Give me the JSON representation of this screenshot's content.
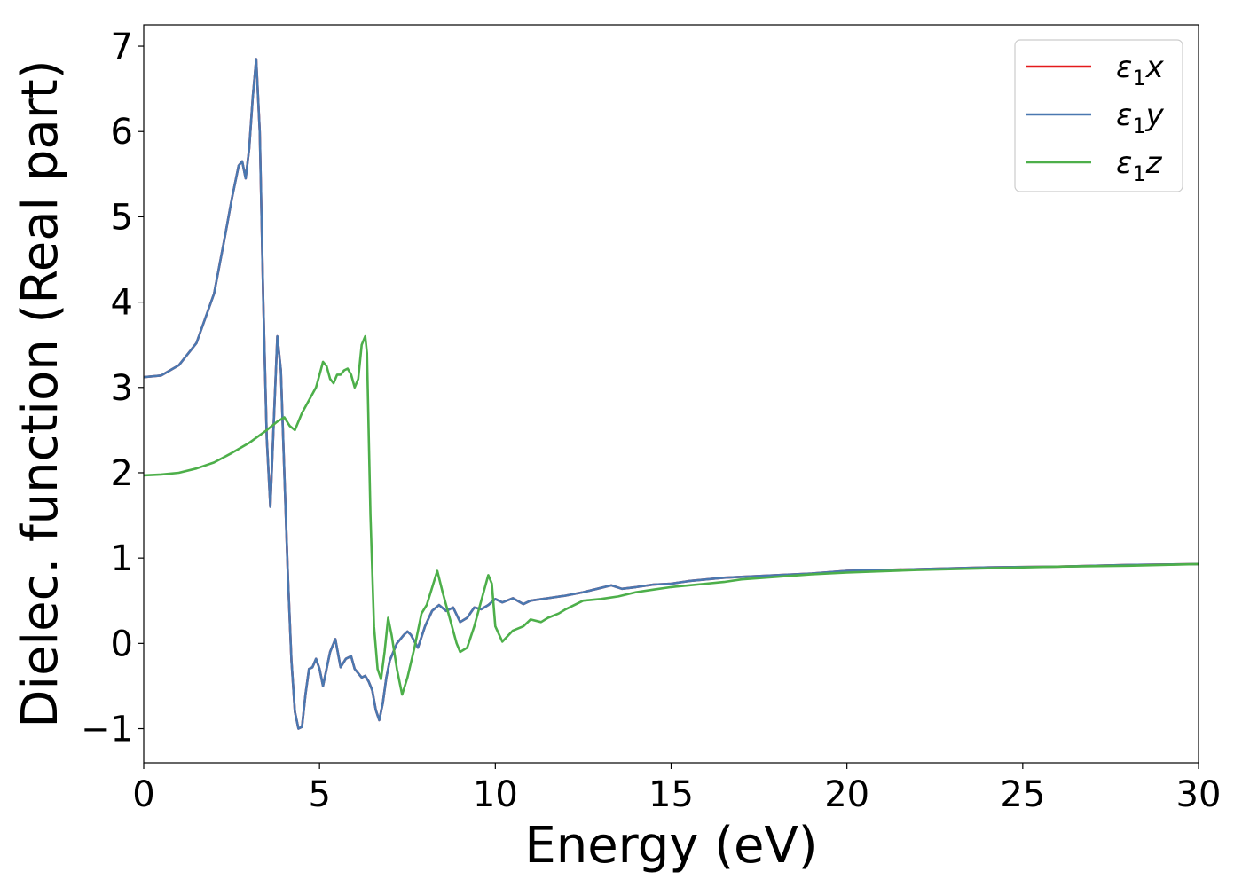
{
  "chart_data": {
    "type": "line",
    "xlabel": "Energy (eV)",
    "ylabel": "Dielec. function (Real part)",
    "xlim": [
      0,
      30
    ],
    "ylim": [
      -1.4,
      7.25
    ],
    "xticks": [
      0,
      5,
      10,
      15,
      20,
      25,
      30
    ],
    "xtick_labels": [
      "0",
      "5",
      "10",
      "15",
      "20",
      "25",
      "30"
    ],
    "yticks": [
      -1,
      0,
      1,
      2,
      3,
      4,
      5,
      6,
      7
    ],
    "ytick_labels": [
      "−1",
      "0",
      "1",
      "2",
      "3",
      "4",
      "5",
      "6",
      "7"
    ],
    "grid": false,
    "legend_position": "top-right",
    "legend_entries": [
      {
        "base": "ε",
        "sub": "1",
        "axis": "x"
      },
      {
        "base": "ε",
        "sub": "1",
        "axis": "y"
      },
      {
        "base": "ε",
        "sub": "1",
        "axis": "z"
      }
    ],
    "series": [
      {
        "name": "ε1x",
        "color": "#e41a1c",
        "x": [
          0,
          0.5,
          1.0,
          1.5,
          2.0,
          2.3,
          2.5,
          2.7,
          2.8,
          2.9,
          3.0,
          3.1,
          3.2,
          3.3,
          3.4,
          3.5,
          3.6,
          3.7,
          3.8,
          3.9,
          4.0,
          4.1,
          4.2,
          4.3,
          4.4,
          4.5,
          4.6,
          4.7,
          4.8,
          4.9,
          5.0,
          5.1,
          5.2,
          5.3,
          5.45,
          5.6,
          5.75,
          5.9,
          6.0,
          6.1,
          6.2,
          6.3,
          6.4,
          6.5,
          6.6,
          6.7,
          6.8,
          6.9,
          7.0,
          7.2,
          7.4,
          7.5,
          7.6,
          7.8,
          8.0,
          8.2,
          8.4,
          8.6,
          8.8,
          9.0,
          9.2,
          9.4,
          9.6,
          9.8,
          10.0,
          10.2,
          10.5,
          10.8,
          11.0,
          11.5,
          12.0,
          12.5,
          13.0,
          13.3,
          13.6,
          14.0,
          14.5,
          15.0,
          15.5,
          16.0,
          16.5,
          17.0,
          18.0,
          19.0,
          20.0,
          22.0,
          24.0,
          26.0,
          28.0,
          30.0
        ],
        "values": [
          3.12,
          3.14,
          3.26,
          3.52,
          4.1,
          4.75,
          5.2,
          5.6,
          5.65,
          5.45,
          5.8,
          6.4,
          6.85,
          6.0,
          4.0,
          2.4,
          1.6,
          2.6,
          3.6,
          3.2,
          2.0,
          0.8,
          -0.2,
          -0.8,
          -1.0,
          -0.98,
          -0.6,
          -0.3,
          -0.28,
          -0.18,
          -0.3,
          -0.5,
          -0.3,
          -0.1,
          0.05,
          -0.28,
          -0.18,
          -0.15,
          -0.3,
          -0.35,
          -0.4,
          -0.38,
          -0.45,
          -0.55,
          -0.78,
          -0.9,
          -0.7,
          -0.4,
          -0.2,
          0.0,
          0.1,
          0.14,
          0.1,
          -0.05,
          0.2,
          0.38,
          0.45,
          0.38,
          0.42,
          0.25,
          0.3,
          0.42,
          0.4,
          0.45,
          0.52,
          0.48,
          0.53,
          0.46,
          0.5,
          0.53,
          0.56,
          0.6,
          0.65,
          0.68,
          0.64,
          0.66,
          0.69,
          0.7,
          0.73,
          0.75,
          0.77,
          0.78,
          0.8,
          0.82,
          0.85,
          0.87,
          0.89,
          0.9,
          0.92,
          0.93
        ]
      },
      {
        "name": "ε1y",
        "color": "#4a78b0",
        "x": [
          0,
          0.5,
          1.0,
          1.5,
          2.0,
          2.3,
          2.5,
          2.7,
          2.8,
          2.9,
          3.0,
          3.1,
          3.2,
          3.3,
          3.4,
          3.5,
          3.6,
          3.7,
          3.8,
          3.9,
          4.0,
          4.1,
          4.2,
          4.3,
          4.4,
          4.5,
          4.6,
          4.7,
          4.8,
          4.9,
          5.0,
          5.1,
          5.2,
          5.3,
          5.45,
          5.6,
          5.75,
          5.9,
          6.0,
          6.1,
          6.2,
          6.3,
          6.4,
          6.5,
          6.6,
          6.7,
          6.8,
          6.9,
          7.0,
          7.2,
          7.4,
          7.5,
          7.6,
          7.8,
          8.0,
          8.2,
          8.4,
          8.6,
          8.8,
          9.0,
          9.2,
          9.4,
          9.6,
          9.8,
          10.0,
          10.2,
          10.5,
          10.8,
          11.0,
          11.5,
          12.0,
          12.5,
          13.0,
          13.3,
          13.6,
          14.0,
          14.5,
          15.0,
          15.5,
          16.0,
          16.5,
          17.0,
          18.0,
          19.0,
          20.0,
          22.0,
          24.0,
          26.0,
          28.0,
          30.0
        ],
        "values": [
          3.12,
          3.14,
          3.26,
          3.52,
          4.1,
          4.75,
          5.2,
          5.6,
          5.65,
          5.45,
          5.8,
          6.4,
          6.85,
          6.0,
          4.0,
          2.4,
          1.6,
          2.6,
          3.6,
          3.2,
          2.0,
          0.8,
          -0.2,
          -0.8,
          -1.0,
          -0.98,
          -0.6,
          -0.3,
          -0.28,
          -0.18,
          -0.3,
          -0.5,
          -0.3,
          -0.1,
          0.05,
          -0.28,
          -0.18,
          -0.15,
          -0.3,
          -0.35,
          -0.4,
          -0.38,
          -0.45,
          -0.55,
          -0.78,
          -0.9,
          -0.7,
          -0.4,
          -0.2,
          0.0,
          0.1,
          0.14,
          0.1,
          -0.05,
          0.2,
          0.38,
          0.45,
          0.38,
          0.42,
          0.25,
          0.3,
          0.42,
          0.4,
          0.45,
          0.52,
          0.48,
          0.53,
          0.46,
          0.5,
          0.53,
          0.56,
          0.6,
          0.65,
          0.68,
          0.64,
          0.66,
          0.69,
          0.7,
          0.73,
          0.75,
          0.77,
          0.78,
          0.8,
          0.82,
          0.85,
          0.87,
          0.89,
          0.9,
          0.92,
          0.93
        ]
      },
      {
        "name": "ε1z",
        "color": "#4daf4a",
        "x": [
          0,
          0.5,
          1.0,
          1.5,
          2.0,
          2.5,
          3.0,
          3.5,
          3.8,
          4.0,
          4.15,
          4.3,
          4.5,
          4.7,
          4.9,
          5.0,
          5.1,
          5.2,
          5.3,
          5.4,
          5.5,
          5.6,
          5.7,
          5.8,
          5.9,
          6.0,
          6.1,
          6.2,
          6.3,
          6.35,
          6.45,
          6.55,
          6.65,
          6.75,
          6.85,
          6.95,
          7.05,
          7.2,
          7.35,
          7.5,
          7.7,
          7.9,
          8.05,
          8.2,
          8.35,
          8.5,
          8.7,
          8.9,
          9.0,
          9.2,
          9.4,
          9.6,
          9.8,
          9.9,
          10.0,
          10.2,
          10.5,
          10.8,
          11.0,
          11.3,
          11.5,
          11.8,
          12.0,
          12.5,
          13.0,
          13.5,
          14.0,
          14.5,
          15.0,
          15.5,
          16.0,
          16.5,
          17.0,
          18.0,
          19.0,
          20.0,
          22.0,
          24.0,
          26.0,
          28.0,
          30.0
        ],
        "values": [
          1.97,
          1.98,
          2.0,
          2.05,
          2.12,
          2.23,
          2.35,
          2.5,
          2.6,
          2.65,
          2.55,
          2.5,
          2.7,
          2.85,
          3.0,
          3.15,
          3.3,
          3.25,
          3.1,
          3.05,
          3.15,
          3.15,
          3.2,
          3.22,
          3.15,
          3.0,
          3.1,
          3.5,
          3.6,
          3.4,
          1.5,
          0.2,
          -0.3,
          -0.42,
          -0.1,
          0.3,
          0.1,
          -0.3,
          -0.6,
          -0.4,
          -0.05,
          0.35,
          0.45,
          0.65,
          0.85,
          0.6,
          0.3,
          0.0,
          -0.1,
          -0.05,
          0.2,
          0.5,
          0.8,
          0.7,
          0.2,
          0.02,
          0.15,
          0.2,
          0.28,
          0.25,
          0.3,
          0.35,
          0.4,
          0.5,
          0.52,
          0.55,
          0.6,
          0.63,
          0.66,
          0.68,
          0.7,
          0.72,
          0.75,
          0.78,
          0.81,
          0.83,
          0.86,
          0.88,
          0.9,
          0.91,
          0.93
        ]
      }
    ]
  }
}
